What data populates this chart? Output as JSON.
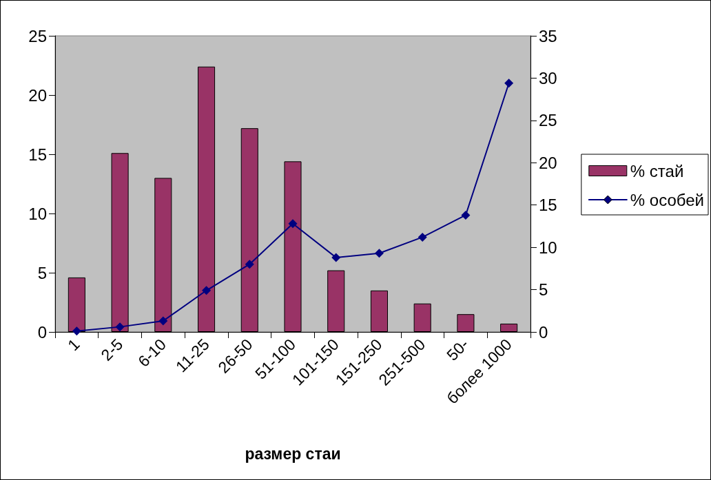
{
  "chart_data": {
    "type": "bar",
    "xlabel": "размер стаи",
    "categories": [
      "1",
      "2-5",
      "6-10",
      "11-25",
      "26-50",
      "51-100",
      "101-150",
      "151-250",
      "251-500",
      "50-",
      "более 1000"
    ],
    "series": [
      {
        "name": "% стай",
        "color": "#993366",
        "values": [
          4.6,
          15.1,
          13.0,
          22.4,
          17.2,
          14.4,
          5.2,
          3.5,
          2.4,
          1.5,
          0.7
        ]
      },
      {
        "name": "% особей",
        "type": "line",
        "axis": "y2",
        "color": "#000080",
        "values": [
          0.1,
          0.6,
          1.3,
          4.9,
          8.0,
          12.8,
          8.8,
          9.3,
          11.2,
          13.8,
          29.4
        ]
      }
    ],
    "ylim": [
      0,
      25
    ],
    "yticks": [
      0,
      5,
      10,
      15,
      20,
      25
    ],
    "y2lim": [
      0,
      35
    ],
    "y2ticks": [
      0,
      5,
      10,
      15,
      20,
      25,
      30,
      35
    ],
    "marker": "diamond",
    "line_style": "solid",
    "legend": "right",
    "grid": false
  }
}
